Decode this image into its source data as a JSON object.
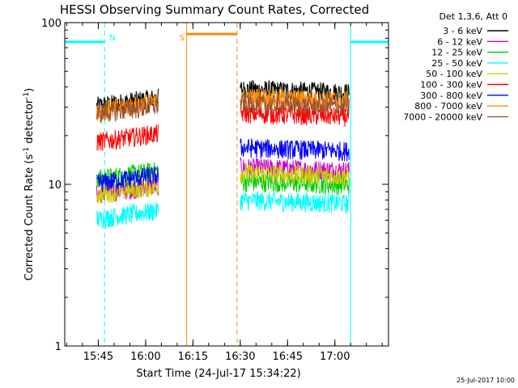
{
  "chart_data": {
    "type": "line",
    "title": "HESSI Observing Summary Count Rates, Corrected",
    "xlabel": "Start Time (24-Jul-17 15:34:22)",
    "ylabel_main": "Corrected Count Rate (s",
    "ylabel_exp1": "-1",
    "ylabel_mid": " detector",
    "ylabel_exp2": "-1",
    "ylabel_end": ")",
    "y_scale": "log",
    "ylim": [
      1,
      100
    ],
    "xlim": [
      "15:34:22",
      "17:17:00"
    ],
    "x_ticks": [
      "15:45",
      "16:00",
      "16:15",
      "16:30",
      "16:45",
      "17:00"
    ],
    "y_ticks": [
      "1",
      "10",
      "100"
    ],
    "legend_header": "Det 1,3,6, Att 0",
    "legend_position": "top-right",
    "footer_date": "25-Jul-2017 10:00",
    "flag_lines": [
      {
        "label": "N",
        "color": "#00ffff",
        "start": "15:34:22",
        "end": "15:47:00",
        "level": 76
      },
      {
        "label": "S",
        "color": "#ff8c00",
        "start": "16:13:00",
        "end": "16:29:00",
        "level": 85
      },
      {
        "label": "",
        "color": "#00ffff",
        "start": "17:05:00",
        "end": "17:17:00",
        "level": 76
      }
    ],
    "orbit_windows": [
      {
        "start": "15:44:30",
        "end": "16:04:00"
      },
      {
        "start": "16:30:00",
        "end": "17:04:30"
      }
    ],
    "series": [
      {
        "name": "3 - 6 keV",
        "color": "#000000",
        "levels": [
          32.5,
          38
        ]
      },
      {
        "name": "6 - 12 keV",
        "color": "#cc00cc",
        "levels": [
          9.3,
          12.5
        ]
      },
      {
        "name": "12 - 25 keV",
        "color": "#00cc00",
        "levels": [
          11.5,
          10.2
        ]
      },
      {
        "name": "25 - 50 keV",
        "color": "#00ffff",
        "levels": [
          6.5,
          7.8
        ]
      },
      {
        "name": "50 - 100 keV",
        "color": "#cccc00",
        "levels": [
          9.2,
          11.5
        ]
      },
      {
        "name": "100 - 300 keV",
        "color": "#ff0000",
        "levels": [
          19.5,
          27
        ]
      },
      {
        "name": "300 - 800 keV",
        "color": "#0000ff",
        "levels": [
          10.8,
          16.5
        ]
      },
      {
        "name": "800 - 7000 keV",
        "color": "#ff8c00",
        "levels": [
          30.5,
          34
        ]
      },
      {
        "name": "7000 - 20000 keV",
        "color": "#a0522d",
        "levels": [
          29,
          31
        ]
      }
    ]
  }
}
